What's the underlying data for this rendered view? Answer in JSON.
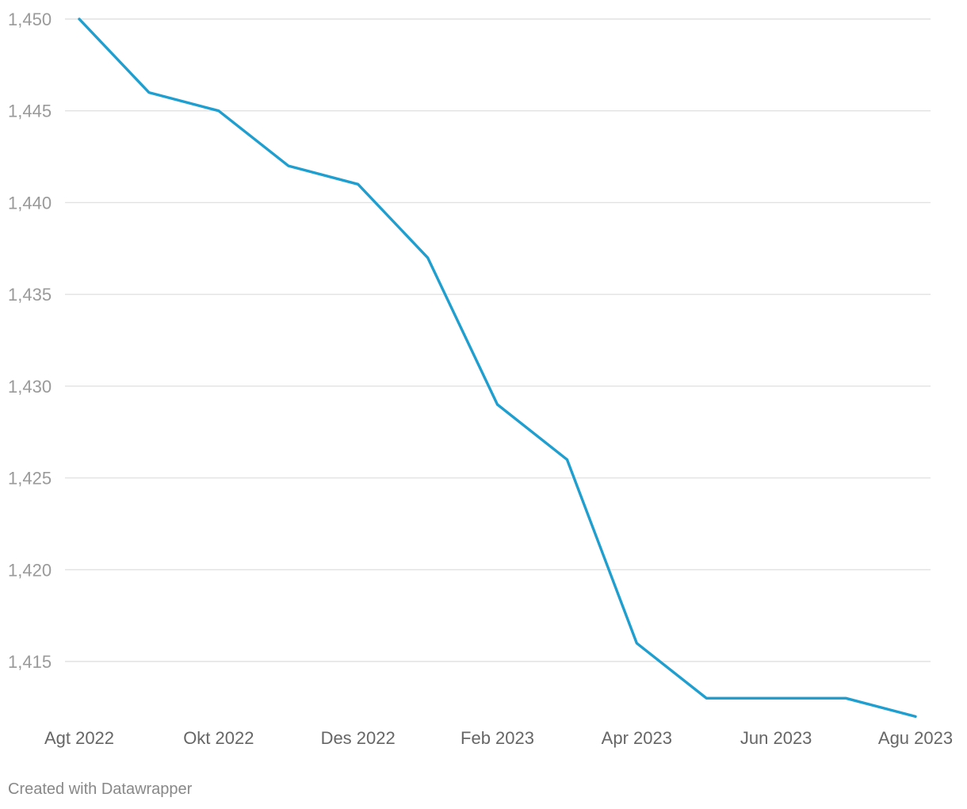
{
  "footer": {
    "credit": "Created with Datawrapper"
  },
  "colors": {
    "line": "#1f9fcf",
    "grid": "#e2e2e2",
    "y_tick_text": "#9a9a9a",
    "x_tick_text": "#666666",
    "credit_text": "#888888"
  },
  "chart_data": {
    "type": "line",
    "title": "",
    "xlabel": "",
    "ylabel": "",
    "x": [
      "Agt 2022",
      "Sep 2022",
      "Okt 2022",
      "Nov 2022",
      "Des 2022",
      "Jan 2023",
      "Feb 2023",
      "Mar 2023",
      "Apr 2023",
      "Mei 2023",
      "Jun 2023",
      "Jul 2023",
      "Agu 2023"
    ],
    "series": [
      {
        "values": [
          1450,
          1446,
          1445,
          1442,
          1441,
          1437,
          1429,
          1426,
          1416,
          1413,
          1413,
          1413,
          1412
        ]
      }
    ],
    "ylim": [
      1412,
      1450
    ],
    "y_ticks": [
      1450,
      1445,
      1440,
      1435,
      1430,
      1425,
      1420,
      1415
    ],
    "y_tick_labels": [
      "1,450",
      "1,445",
      "1,440",
      "1,435",
      "1,430",
      "1,425",
      "1,420",
      "1,415"
    ],
    "x_tick_labels": [
      "Agt 2022",
      "Okt 2022",
      "Des 2022",
      "Feb 2023",
      "Apr 2023",
      "Jun 2023",
      "Agu 2023"
    ],
    "x_tick_indices": [
      0,
      2,
      4,
      6,
      8,
      10,
      12
    ],
    "grid": true,
    "legend": "none"
  }
}
